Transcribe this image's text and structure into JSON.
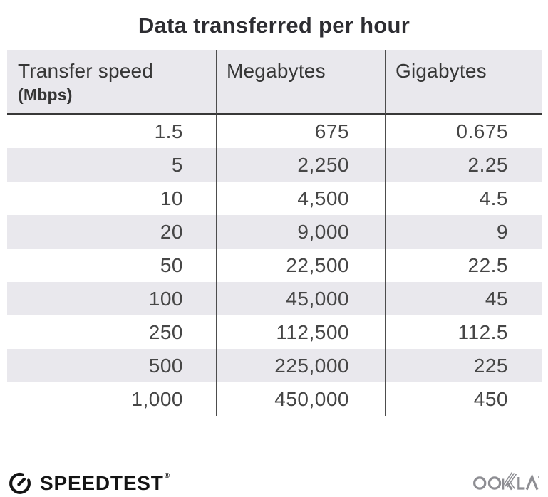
{
  "title": "Data transferred per hour",
  "table": {
    "columns": [
      {
        "label": "Transfer speed",
        "sublabel": "(Mbps)"
      },
      {
        "label": "Megabytes"
      },
      {
        "label": "Gigabytes"
      }
    ],
    "rows": [
      [
        "1.5",
        "675",
        "0.675"
      ],
      [
        "5",
        "2,250",
        "2.25"
      ],
      [
        "10",
        "4,500",
        "4.5"
      ],
      [
        "20",
        "9,000",
        "9"
      ],
      [
        "50",
        "22,500",
        "22.5"
      ],
      [
        "100",
        "45,000",
        "45"
      ],
      [
        "250",
        "112,500",
        "112.5"
      ],
      [
        "500",
        "225,000",
        "225"
      ],
      [
        "1,000",
        "450,000",
        "450"
      ]
    ]
  },
  "footer": {
    "brand": "SPEEDTEST",
    "brand_mark": "®",
    "attribution": "OOKLA",
    "icons": [
      "speedtest-gauge-icon",
      "ookla-logo"
    ]
  },
  "colors": {
    "background": "#ffffff",
    "header_bg": "#e9e8ed",
    "stripe_bg": "#e9e8ed",
    "header_underline": "#383838",
    "column_divider": "#4d4d4d",
    "title_text": "#2d2d32",
    "header_text": "#363636",
    "number_text": "#464646",
    "brand_black": "#141414",
    "ookla_gray": "#8e8e93"
  },
  "chart_data": {
    "type": "table",
    "title": "Data transferred per hour",
    "columns": [
      "Transfer speed (Mbps)",
      "Megabytes",
      "Gigabytes"
    ],
    "rows": [
      [
        1.5,
        675,
        0.675
      ],
      [
        5,
        2250,
        2.25
      ],
      [
        10,
        4500,
        4.5
      ],
      [
        20,
        9000,
        9
      ],
      [
        50,
        22500,
        22.5
      ],
      [
        100,
        45000,
        45
      ],
      [
        250,
        112500,
        112.5
      ],
      [
        500,
        225000,
        225
      ],
      [
        1000,
        450000,
        450
      ]
    ],
    "layout": {
      "striped_rows": true,
      "header_background": "#e9e8ed",
      "grid": "column-dividers-only"
    }
  }
}
